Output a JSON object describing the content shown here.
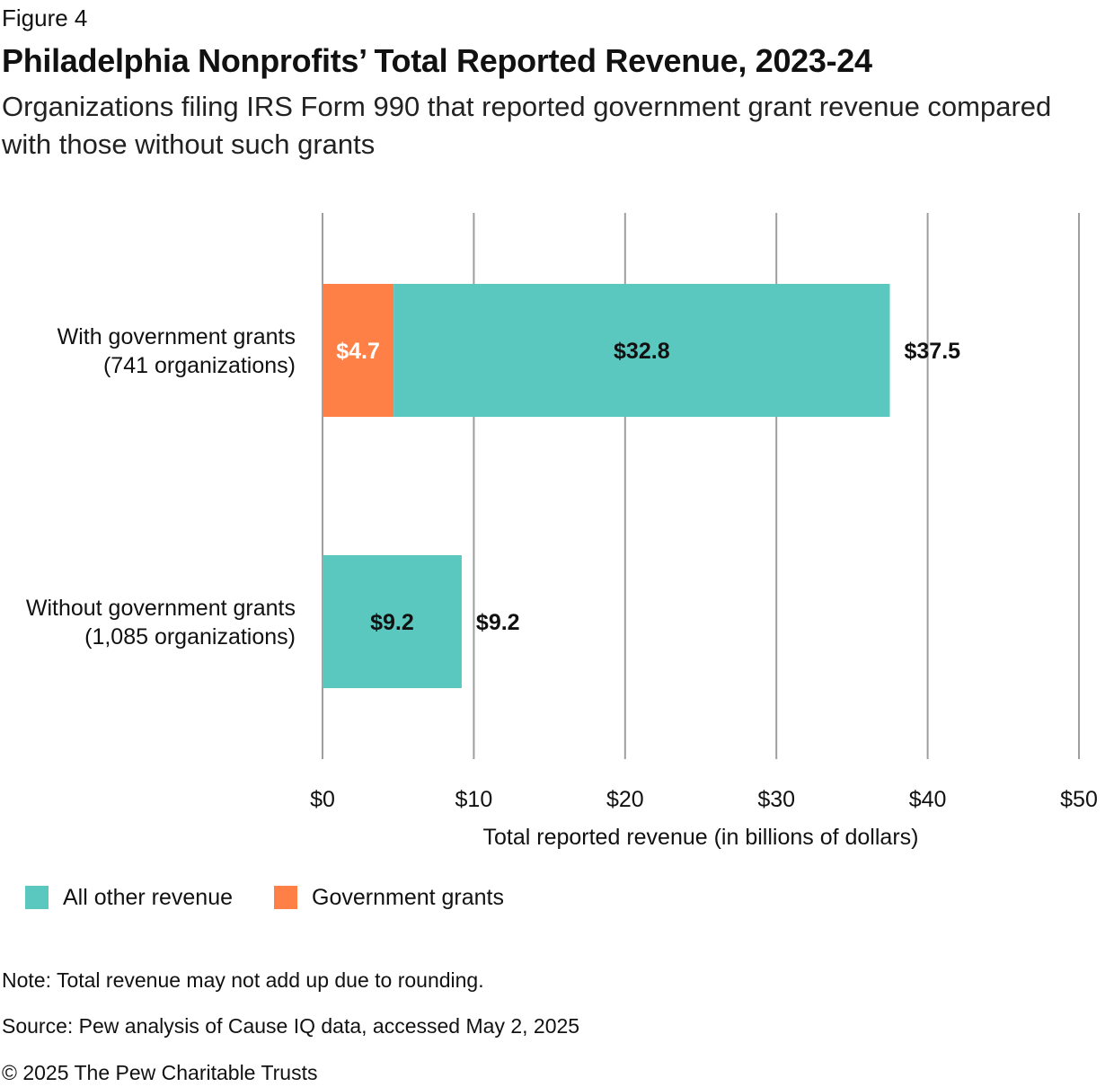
{
  "figure_label": "Figure 4",
  "notes": {
    "note": "Note: Total revenue may not add up due to rounding.",
    "source": "Source: Pew analysis of Cause IQ data, accessed May 2, 2025",
    "copyright": "© 2025 The Pew Charitable Trusts"
  },
  "colors": {
    "all_other_revenue": "#5bc8bf",
    "government_grants": "#ff8047",
    "gridline": "#9e9e9e"
  },
  "chart_data": {
    "type": "bar",
    "orientation": "horizontal",
    "stacked": true,
    "title": "Philadelphia Nonprofits’ Total Reported Revenue, 2023-24",
    "subtitle": "Organizations filing IRS Form 990 that reported government grant revenue compared with those without such grants",
    "xlabel": "Total reported revenue (in billions of dollars)",
    "ylabel": "",
    "xlim": [
      0,
      50
    ],
    "ticks": [
      {
        "value": 0,
        "label": "$0"
      },
      {
        "value": 10,
        "label": "$10"
      },
      {
        "value": 20,
        "label": "$20"
      },
      {
        "value": 30,
        "label": "$30"
      },
      {
        "value": 40,
        "label": "$40"
      },
      {
        "value": 50,
        "label": "$50"
      }
    ],
    "grid": true,
    "legend_position": "bottom-left",
    "categories": [
      {
        "line1": "With government grants",
        "line2": "(741 organizations)"
      },
      {
        "line1": "Without government grants",
        "line2": "(1,085 organizations)"
      }
    ],
    "series": [
      {
        "name": "Government grants",
        "values": [
          4.7,
          0
        ],
        "labels": [
          "$4.7",
          ""
        ],
        "color": "#ff8047",
        "label_color": "#ffffff"
      },
      {
        "name": "All other revenue",
        "values": [
          32.8,
          9.2
        ],
        "labels": [
          "$32.8",
          "$9.2"
        ],
        "color": "#5bc8bf",
        "label_color": "#111111"
      }
    ],
    "totals": [
      37.5,
      9.2
    ],
    "total_labels": [
      "$37.5",
      "$9.2"
    ],
    "legend_order": [
      "All other revenue",
      "Government grants"
    ]
  }
}
